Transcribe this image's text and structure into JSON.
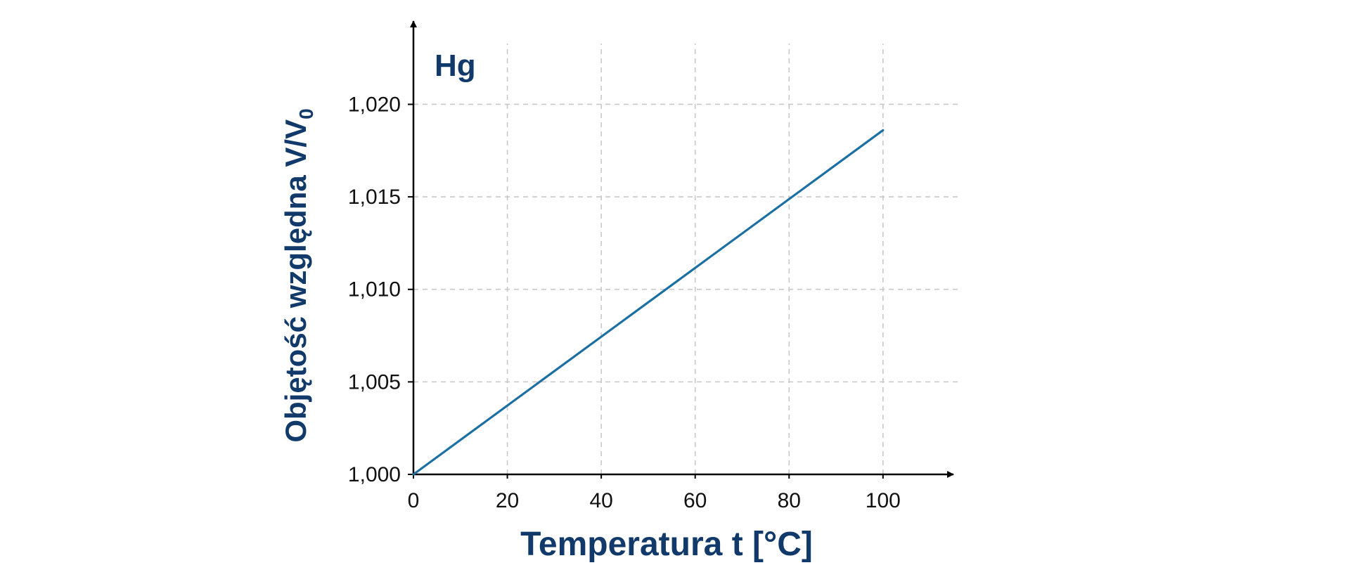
{
  "colors": {
    "line": "#1b6fa3",
    "label": "#113a6b",
    "axis": "#000000",
    "grid": "#c8c8c8"
  },
  "chart_data": {
    "type": "line",
    "title": "",
    "annotation": "Hg",
    "xlabel": "Temperatura t [°C]",
    "ylabel_main": "Objętość względna V/V",
    "ylabel_sub": "0",
    "xlim": [
      0,
      115
    ],
    "ylim": [
      1.0,
      1.0245
    ],
    "x_ticks": [
      0,
      20,
      40,
      60,
      80,
      100
    ],
    "x_tick_labels": [
      "0",
      "20",
      "40",
      "60",
      "80",
      "100"
    ],
    "y_ticks": [
      1.0,
      1.005,
      1.01,
      1.015,
      1.02
    ],
    "y_tick_labels": [
      "1,000",
      "1,005",
      "1,010",
      "1,015",
      "1,020"
    ],
    "grid": true,
    "series": [
      {
        "name": "Hg",
        "x": [
          0,
          100
        ],
        "y": [
          1.0,
          1.0186
        ]
      }
    ]
  }
}
